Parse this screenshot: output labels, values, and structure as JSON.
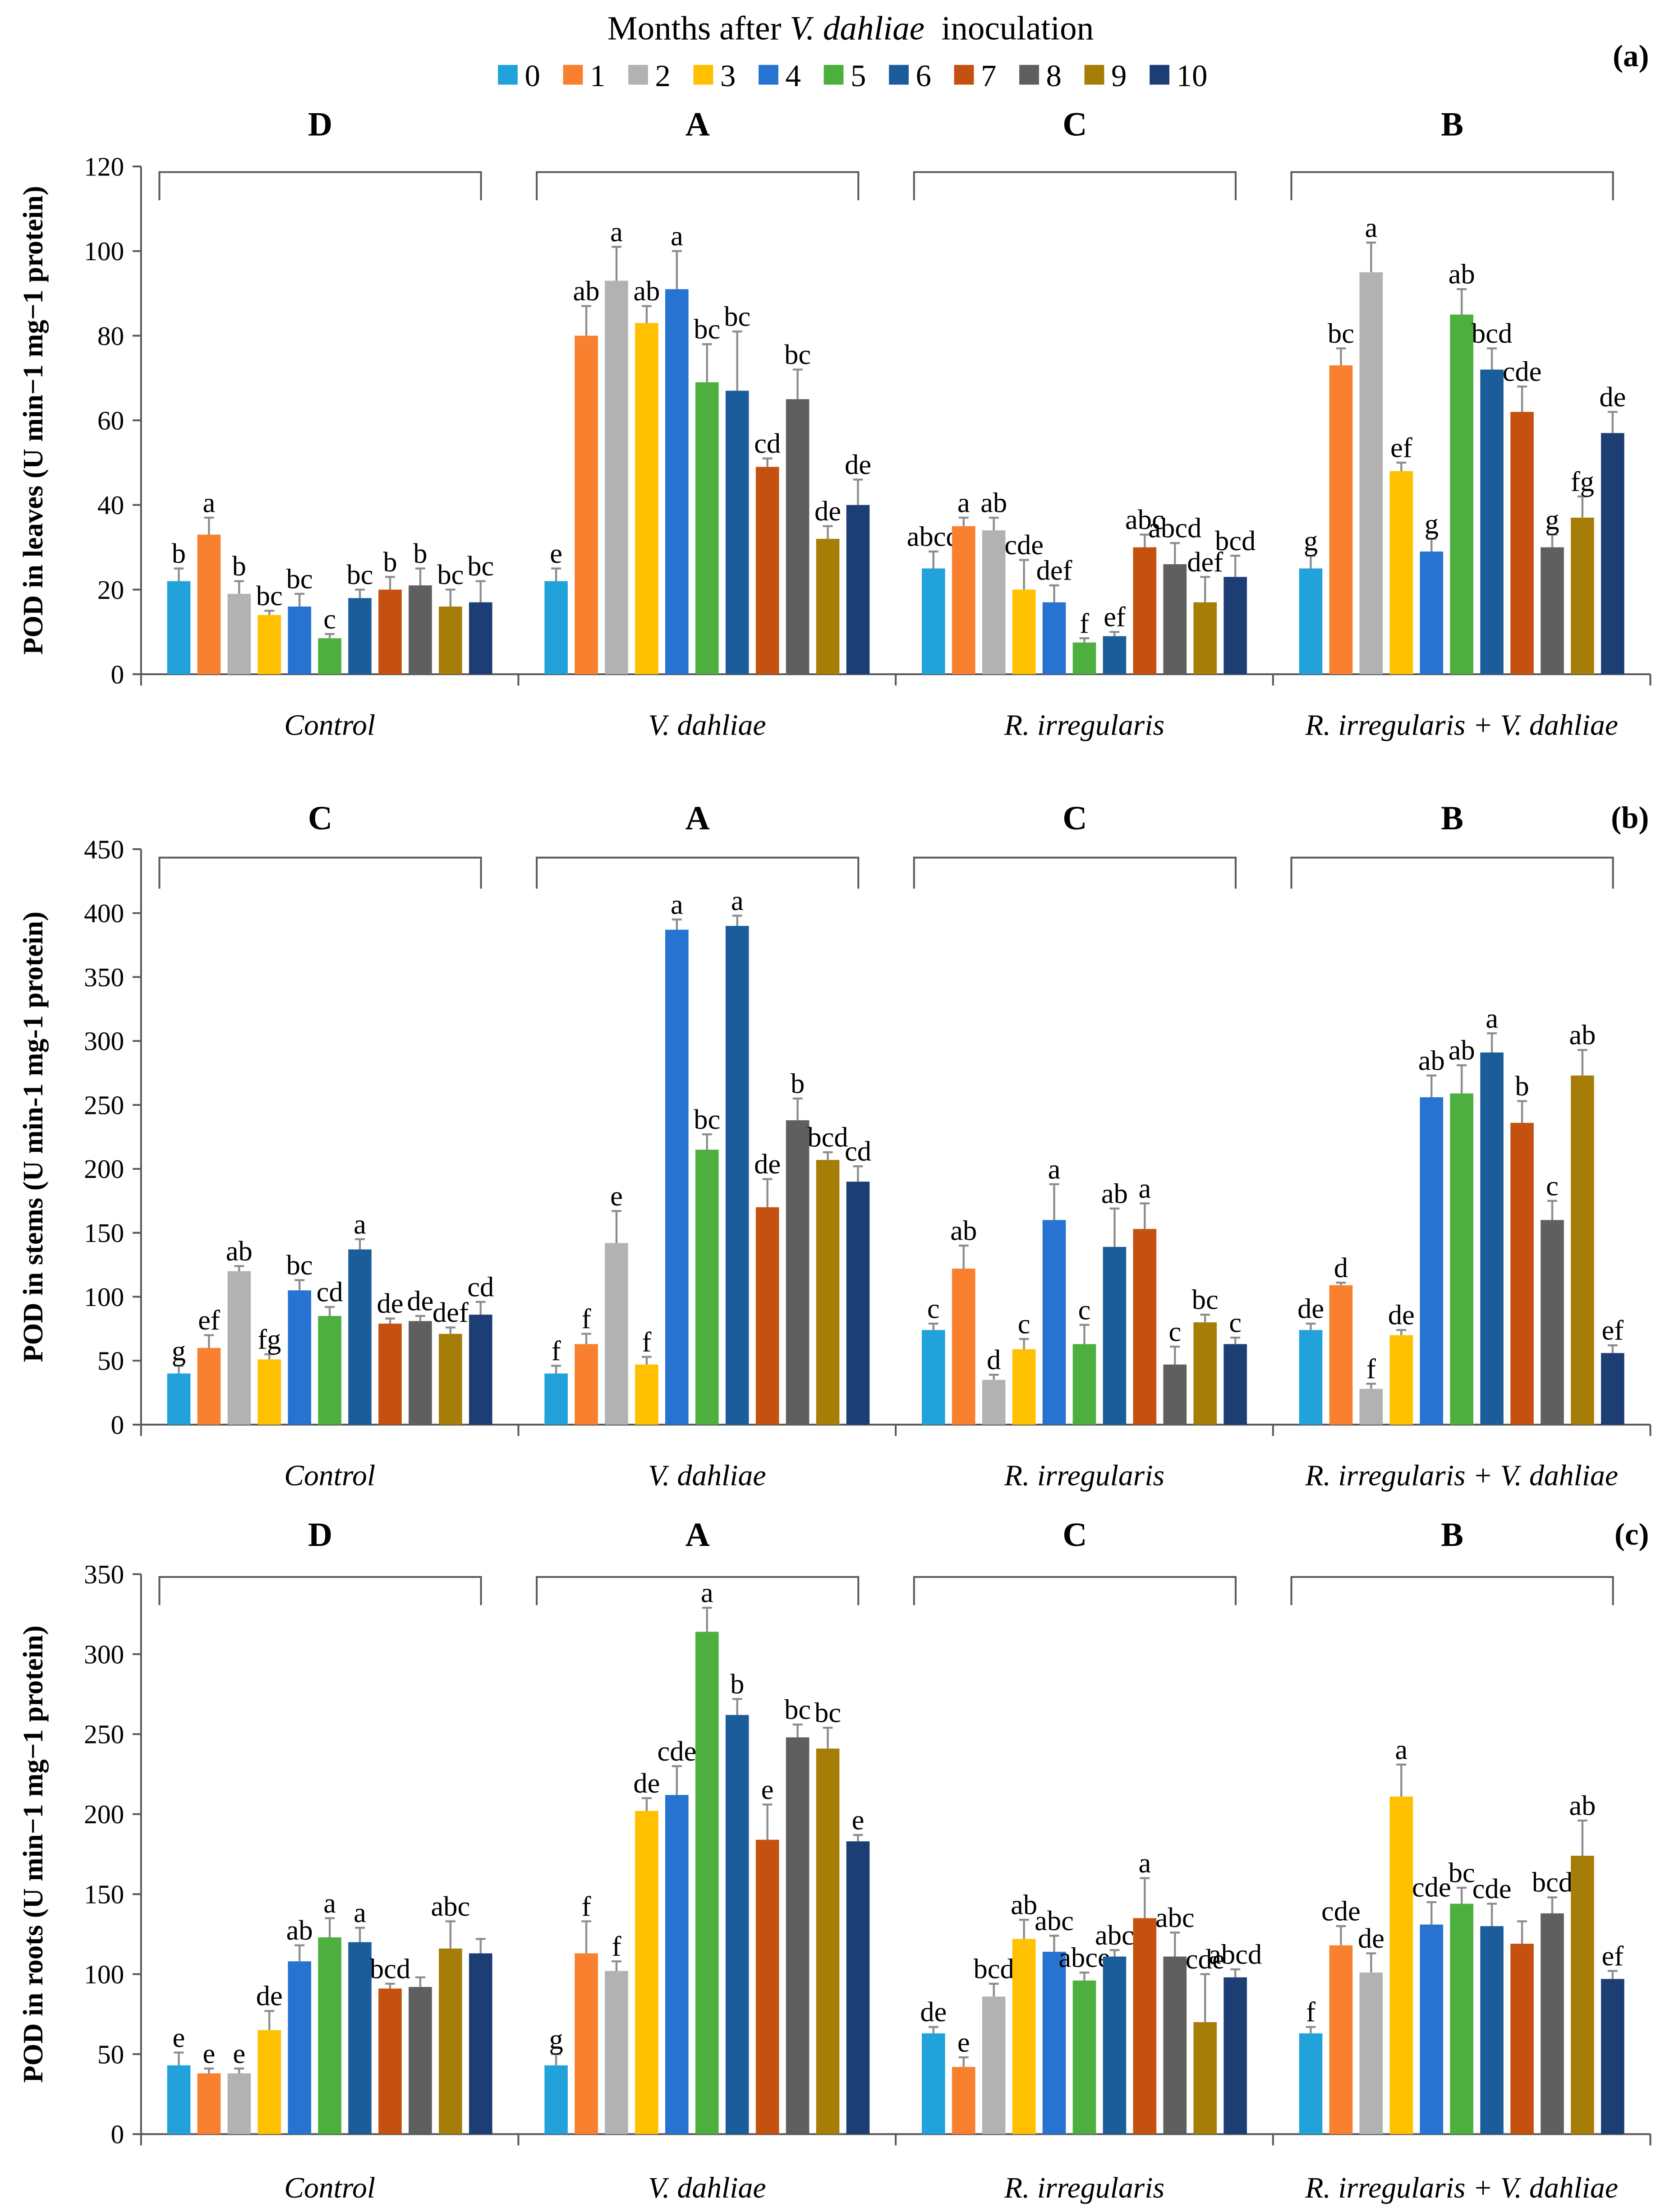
{
  "legend": {
    "title_prefix": "Months after ",
    "title_italic": "V. dahliae",
    "title_suffix": "  inoculation",
    "items": [
      {
        "label": "0",
        "color": "#22a2da"
      },
      {
        "label": "1",
        "color": "#f8802f"
      },
      {
        "label": "2",
        "color": "#b2b2b2"
      },
      {
        "label": "3",
        "color": "#ffc000"
      },
      {
        "label": "4",
        "color": "#2673d2"
      },
      {
        "label": "5",
        "color": "#4caf3e"
      },
      {
        "label": "6",
        "color": "#1b5d9b"
      },
      {
        "label": "7",
        "color": "#c4510f"
      },
      {
        "label": "8",
        "color": "#5f5f5f"
      },
      {
        "label": "9",
        "color": "#a67d06"
      },
      {
        "label": "10",
        "color": "#1c3e74"
      }
    ]
  },
  "chart_data": [
    {
      "type": "bar",
      "panel_label": "(a)",
      "ylabel": "POD in leaves (U min−1 mg−1 protein)",
      "ylim": [
        0,
        120
      ],
      "yticks": [
        0,
        20,
        40,
        60,
        80,
        100,
        120
      ],
      "groups": [
        {
          "name": "Control",
          "letter": "D",
          "values": [
            22,
            33,
            19,
            14,
            16,
            8.5,
            18,
            20,
            21,
            16,
            17
          ],
          "errors": [
            3,
            4,
            3,
            1,
            3,
            1,
            2,
            3,
            4,
            4,
            5
          ],
          "letters": [
            "b",
            "a",
            "b",
            "bc",
            "bc",
            "c",
            "bc",
            "b",
            "b",
            "bc",
            "bc"
          ]
        },
        {
          "name": "V. dahliae",
          "letter": "A",
          "values": [
            22,
            80,
            93,
            83,
            91,
            69,
            67,
            49,
            65,
            32,
            40
          ],
          "errors": [
            3,
            7,
            8,
            4,
            9,
            9,
            14,
            2,
            7,
            3,
            6
          ],
          "letters": [
            "e",
            "ab",
            "a",
            "ab",
            "a",
            "bc",
            "bc",
            "cd",
            "bc",
            "de",
            "de"
          ]
        },
        {
          "name": "R. irregularis",
          "letter": "C",
          "values": [
            25,
            35,
            34,
            20,
            17,
            7.5,
            9,
            30,
            26,
            17,
            23
          ],
          "errors": [
            4,
            2,
            3,
            7,
            4,
            1,
            1,
            3,
            5,
            6,
            5
          ],
          "letters": [
            "abcd",
            "a",
            "ab",
            "cde",
            "def",
            "f",
            "ef",
            "abc",
            "abcd",
            "def",
            "bcd"
          ]
        },
        {
          "name": "R. irregularis + V. dahliae",
          "letter": "B",
          "values": [
            25,
            73,
            95,
            48,
            29,
            85,
            72,
            62,
            30,
            37,
            57
          ],
          "errors": [
            3,
            4,
            7,
            2,
            3,
            6,
            5,
            6,
            3,
            5,
            5
          ],
          "letters": [
            "g",
            "bc",
            "a",
            "ef",
            "g",
            "ab",
            "bcd",
            "cde",
            "g",
            "fg",
            "de"
          ]
        }
      ]
    },
    {
      "type": "bar",
      "panel_label": "(b)",
      "ylabel": "POD in stems (U min-1 mg-1 protein)",
      "ylim": [
        0,
        450
      ],
      "yticks": [
        0,
        50,
        100,
        150,
        200,
        250,
        300,
        350,
        400,
        450
      ],
      "groups": [
        {
          "name": "Control",
          "letter": "C",
          "values": [
            40,
            60,
            120,
            51,
            105,
            85,
            137,
            79,
            81,
            71,
            86
          ],
          "errors": [
            6,
            10,
            4,
            4,
            8,
            7,
            8,
            4,
            4,
            5,
            10
          ],
          "letters": [
            "g",
            "ef",
            "ab",
            "fg",
            "bc",
            "cd",
            "a",
            "de",
            "de",
            "def",
            "cd"
          ]
        },
        {
          "name": "V. dahliae",
          "letter": "A",
          "values": [
            40,
            63,
            142,
            47,
            387,
            215,
            390,
            170,
            238,
            207,
            190
          ],
          "errors": [
            6,
            8,
            25,
            6,
            8,
            12,
            8,
            22,
            17,
            6,
            12
          ],
          "letters": [
            "f",
            "f",
            "e",
            "f",
            "a",
            "bc",
            "a",
            "de",
            "b",
            "bcd",
            "cd"
          ]
        },
        {
          "name": "R. irregularis",
          "letter": "C",
          "values": [
            74,
            122,
            35,
            59,
            160,
            63,
            139,
            153,
            47,
            80,
            63
          ],
          "errors": [
            5,
            18,
            4,
            8,
            28,
            15,
            30,
            20,
            14,
            6,
            5
          ],
          "letters": [
            "c",
            "ab",
            "d",
            "c",
            "a",
            "c",
            "ab",
            "a",
            "c",
            "bc",
            "c"
          ]
        },
        {
          "name": "R. irregularis + V. dahliae",
          "letter": "B",
          "values": [
            74,
            109,
            28,
            70,
            256,
            259,
            291,
            236,
            160,
            273,
            56
          ],
          "errors": [
            5,
            2,
            4,
            4,
            17,
            22,
            15,
            17,
            15,
            20,
            6
          ],
          "letters": [
            "de",
            "d",
            "f",
            "de",
            "ab",
            "ab",
            "a",
            "b",
            "c",
            "ab",
            "ef"
          ]
        }
      ]
    },
    {
      "type": "bar",
      "panel_label": "(c)",
      "ylabel": "POD in roots (U min−1 mg−1 protein)",
      "ylim": [
        0,
        350
      ],
      "yticks": [
        0,
        50,
        100,
        150,
        200,
        250,
        300,
        350
      ],
      "groups": [
        {
          "name": "Control",
          "letter": "D",
          "values": [
            43,
            38,
            38,
            65,
            108,
            123,
            120,
            91,
            92,
            116,
            113
          ],
          "errors": [
            8,
            3,
            3,
            12,
            10,
            12,
            9,
            3,
            6,
            17,
            9
          ],
          "letters": [
            "e",
            "e",
            "e",
            "de",
            "ab",
            "a",
            "a",
            "bcd",
            null,
            "abc",
            null
          ]
        },
        {
          "name": "V. dahliae",
          "letter": "A",
          "values": [
            43,
            113,
            102,
            202,
            212,
            314,
            262,
            184,
            248,
            241,
            183
          ],
          "errors": [
            7,
            20,
            6,
            8,
            18,
            15,
            10,
            22,
            8,
            13,
            4
          ],
          "letters": [
            "g",
            "f",
            "f",
            "de",
            "cde",
            "a",
            "b",
            "e",
            "bc",
            "bc",
            "e"
          ]
        },
        {
          "name": "R. irregularis",
          "letter": "C",
          "values": [
            63,
            42,
            86,
            122,
            114,
            96,
            111,
            135,
            111,
            70,
            98
          ],
          "errors": [
            4,
            6,
            8,
            12,
            10,
            5,
            4,
            25,
            15,
            30,
            5
          ],
          "letters": [
            "de",
            "e",
            "bcd",
            "ab",
            "abc",
            "abce",
            "abc",
            "a",
            "abc",
            "cde",
            "abcd"
          ]
        },
        {
          "name": "R. irregularis + V. dahliae",
          "letter": "B",
          "values": [
            63,
            118,
            101,
            211,
            131,
            144,
            130,
            119,
            138,
            174,
            97
          ],
          "errors": [
            4,
            12,
            12,
            20,
            14,
            10,
            14,
            14,
            10,
            22,
            5
          ],
          "letters": [
            "f",
            "cde",
            "de",
            "a",
            "cde",
            "bc",
            "cde",
            null,
            "bcd",
            "ab",
            "ef"
          ]
        }
      ]
    }
  ]
}
